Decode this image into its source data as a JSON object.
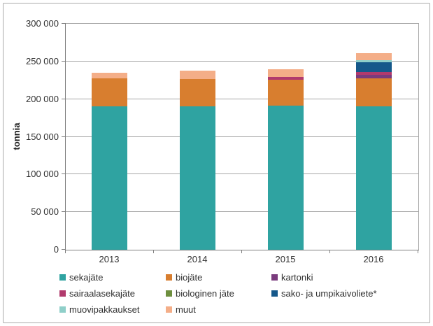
{
  "chart_data": {
    "type": "bar",
    "stacked": true,
    "title": "",
    "xlabel": "",
    "ylabel": "tonnia",
    "categories": [
      "2013",
      "2014",
      "2015",
      "2016"
    ],
    "series": [
      {
        "name": "sekajäte",
        "color": "#2fa3a1",
        "values": [
          190000,
          190000,
          191000,
          190000
        ]
      },
      {
        "name": "biojäte",
        "color": "#d87e2f",
        "values": [
          38000,
          37000,
          35000,
          38000
        ]
      },
      {
        "name": "kartonki",
        "color": "#7a3b7d",
        "values": [
          0,
          0,
          0,
          4000
        ]
      },
      {
        "name": "sairaalasekajäte",
        "color": "#b13a6d",
        "values": [
          0,
          0,
          3000,
          4000
        ]
      },
      {
        "name": "biologinen jäte",
        "color": "#6e8f3e",
        "values": [
          0,
          0,
          0,
          0
        ]
      },
      {
        "name": "sako- ja umpikaivoliete*",
        "color": "#15588a",
        "values": [
          0,
          0,
          0,
          13000
        ]
      },
      {
        "name": "muovipakkaukset",
        "color": "#8fcfc9",
        "values": [
          0,
          0,
          0,
          3000
        ]
      },
      {
        "name": "muut",
        "color": "#f4ae88",
        "values": [
          7000,
          11000,
          11000,
          9000
        ]
      }
    ],
    "totals": [
      235000,
      238000,
      240000,
      261000
    ],
    "ylim": [
      0,
      300000
    ],
    "ytick_step": 50000,
    "ytick_labels": [
      "0",
      "50 000",
      "100 000",
      "150 000",
      "200 000",
      "250 000",
      "300 000"
    ],
    "grid": "horizontal",
    "legend_position": "bottom"
  },
  "colors": {
    "gridline": "#a6a6a6",
    "axis": "#7f7f7f",
    "frame_border": "#ababab",
    "background": "#ffffff"
  }
}
